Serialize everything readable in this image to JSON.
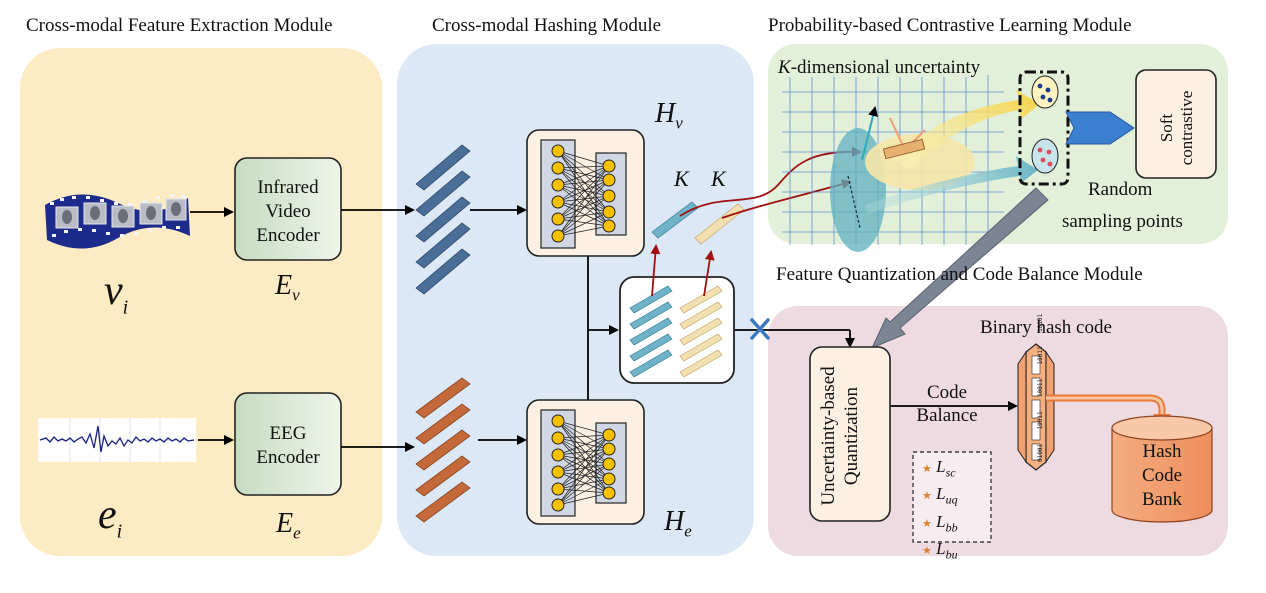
{
  "modules": {
    "feature_extraction": "Cross-modal Feature Extraction Module",
    "hashing": "Cross-modal Hashing Module",
    "contrastive": "Probability-based Contrastive Learning Module",
    "quantization": "Feature Quantization and Code Balance Module"
  },
  "inputs": {
    "video_symbol": "v",
    "video_sub": "i",
    "eeg_symbol": "e",
    "eeg_sub": "i"
  },
  "encoders": {
    "video_line1": "Infrared",
    "video_line2": "Video",
    "video_line3": "Encoder",
    "video_sym": "E",
    "video_sub": "v",
    "eeg_line1": "EEG",
    "eeg_line2": "Encoder",
    "eeg_sym": "E",
    "eeg_sub": "e"
  },
  "hashing": {
    "hv_sym": "H",
    "hv_sub": "v",
    "he_sym": "H",
    "he_sub": "e",
    "k1": "K",
    "k2": "K"
  },
  "contrastive": {
    "uncertainty_prefix": "K",
    "uncertainty_rest": "-dimensional uncertainty",
    "soft_line1": "Soft",
    "soft_line2": "contrastive",
    "random_line1": "Random",
    "random_line2": "sampling points"
  },
  "quantization": {
    "binary_hash_code": "Binary hash code",
    "uq_line1": "Uncertainty-based",
    "uq_line2": "Quantization",
    "code_balance_line1": "Code",
    "code_balance_line2": "Balance",
    "hash_bank_line1": "Hash",
    "hash_bank_line2": "Code",
    "hash_bank_line3": "Bank",
    "code_bits": [
      "10101",
      "10011",
      "10011",
      "10011",
      "01001"
    ]
  },
  "losses": [
    {
      "sym": "L",
      "sub": "sc"
    },
    {
      "sym": "L",
      "sub": "uq"
    },
    {
      "sym": "L",
      "sub": "bb"
    },
    {
      "sym": "L",
      "sub": "bu"
    }
  ],
  "colors": {
    "panel_extraction": "#fdebc4",
    "panel_hashing": "#dce8f5",
    "panel_contrastive": "#e2f0d9",
    "panel_quantization": "#eedbe1",
    "encoder_fill": "#d5e6d0",
    "hash_net_fill": "#fbf0e2",
    "node_fill": "#f5c000",
    "blue_feature": "#4a6e97",
    "orange_feature": "#c3693a",
    "teal_feature": "#6fb3c8",
    "cream_feature": "#f2e0b0",
    "dark_red_arrow": "#a01010",
    "bank_fill": "#f2a070"
  }
}
